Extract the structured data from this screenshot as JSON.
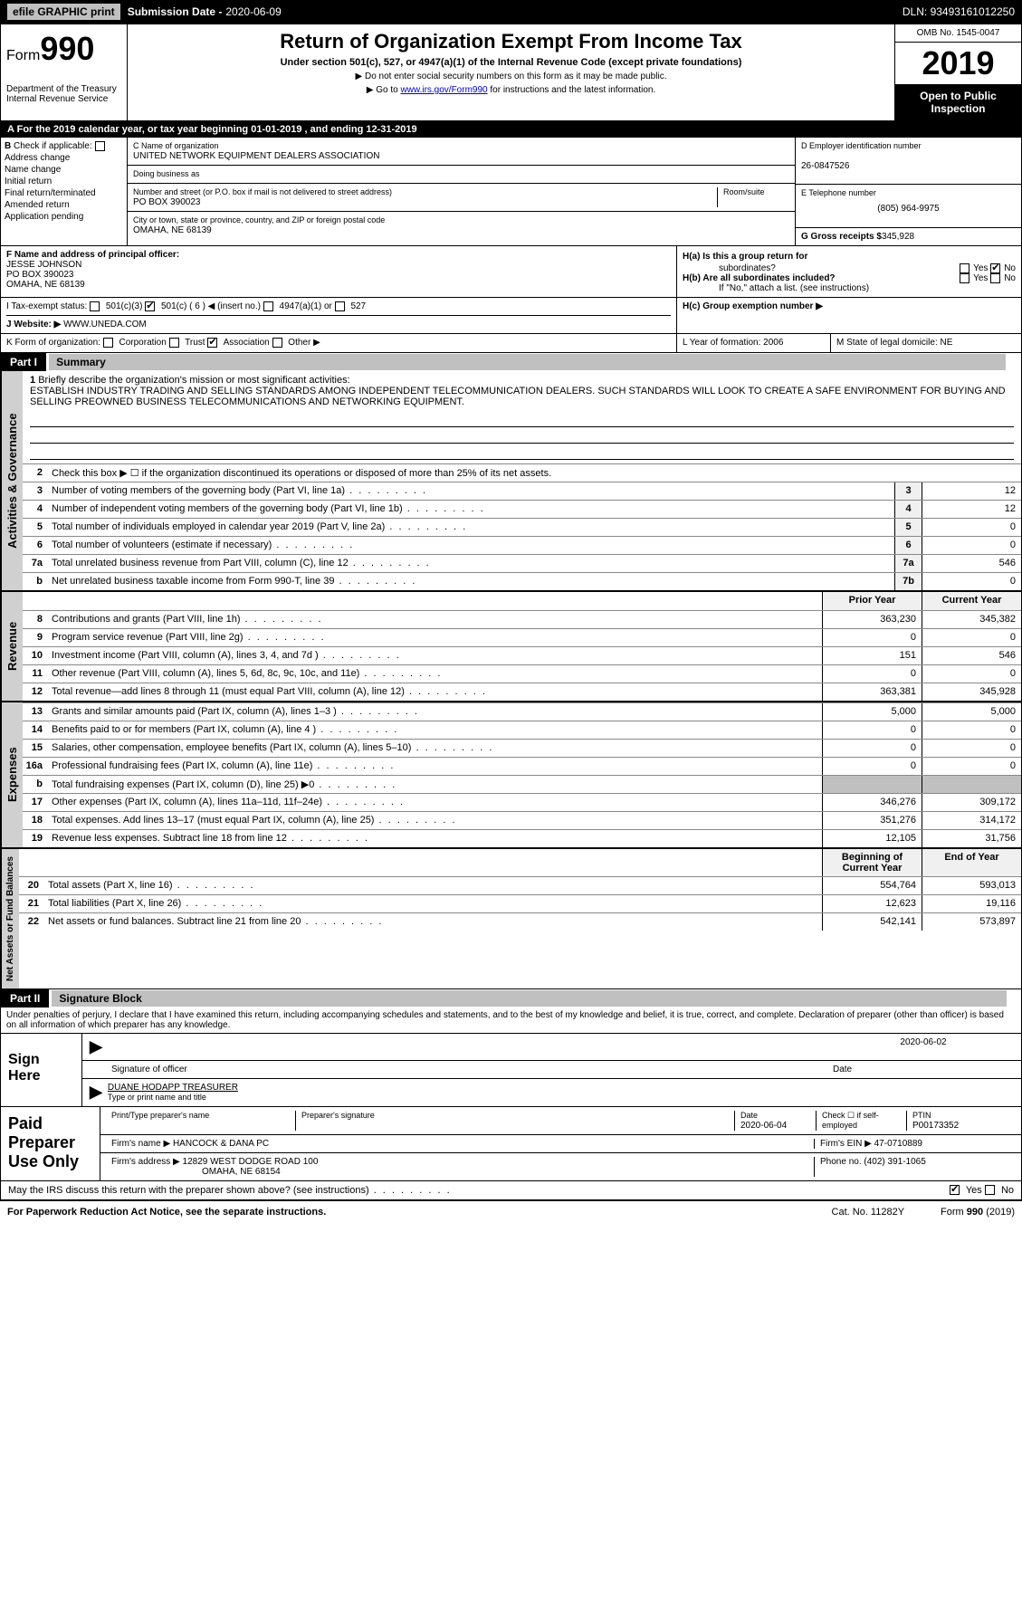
{
  "topbar": {
    "efile": "efile GRAPHIC print",
    "sub_label": "Submission Date -",
    "sub_date": "2020-06-09",
    "dln": "DLN: 93493161012250"
  },
  "header": {
    "form_prefix": "Form",
    "form_num": "990",
    "dept": "Department of the Treasury\nInternal Revenue Service",
    "title": "Return of Organization Exempt From Income Tax",
    "subtitle": "Under section 501(c), 527, or 4947(a)(1) of the Internal Revenue Code (except private foundations)",
    "note1": "▶ Do not enter social security numbers on this form as it may be made public.",
    "note2_pre": "▶ Go to ",
    "note2_link": "www.irs.gov/Form990",
    "note2_post": " for instructions and the latest information.",
    "omb": "OMB No. 1545-0047",
    "year": "2019",
    "open": "Open to Public Inspection"
  },
  "period": "For the 2019 calendar year, or tax year beginning 01-01-2019       , and ending 12-31-2019",
  "colB": {
    "label": "Check if applicable:",
    "items": [
      "Address change",
      "Name change",
      "Initial return",
      "Final return/terminated",
      "Amended return",
      "Application pending"
    ]
  },
  "colC": {
    "name_label": "C Name of organization",
    "name": "UNITED NETWORK EQUIPMENT DEALERS ASSOCIATION",
    "dba_label": "Doing business as",
    "addr_label": "Number and street (or P.O. box if mail is not delivered to street address)",
    "addr": "PO BOX 390023",
    "room_label": "Room/suite",
    "city_label": "City or town, state or province, country, and ZIP or foreign postal code",
    "city": "OMAHA, NE  68139"
  },
  "colD": {
    "ein_label": "D Employer identification number",
    "ein": "26-0847526",
    "phone_label": "E Telephone number",
    "phone": "(805) 964-9975",
    "gross_label": "G Gross receipts $",
    "gross": "345,928"
  },
  "rowF": {
    "f_label": "F  Name and address of principal officer:",
    "f_name": "JESSE JOHNSON",
    "f_addr1": "PO BOX 390023",
    "f_addr2": "OMAHA, NE  68139",
    "ha": "H(a)   Is this a group return for",
    "ha2": "subordinates?",
    "hb": "H(b)   Are all subordinates included?",
    "hb2": "If \"No,\" attach a list. (see instructions)",
    "hc": "H(c)   Group exemption number ▶",
    "yes": "Yes",
    "no": "No"
  },
  "rowI": {
    "label": "I     Tax-exempt status:",
    "opts": [
      "501(c)(3)",
      "501(c) ( 6 ) ◀ (insert no.)",
      "4947(a)(1) or",
      "527"
    ]
  },
  "rowJ": {
    "label": "J   Website: ▶",
    "val": "WWW.UNEDA.COM"
  },
  "rowK": {
    "label": "K Form of organization:",
    "opts": [
      "Corporation",
      "Trust",
      "Association",
      "Other ▶"
    ],
    "l_label": "L Year of formation:",
    "l_val": "2006",
    "m_label": "M State of legal domicile:",
    "m_val": "NE"
  },
  "part1": {
    "tab": "Part I",
    "title": "Summary",
    "line1_label": "Briefly describe the organization's mission or most significant activities:",
    "mission": "ESTABLISH INDUSTRY TRADING AND SELLING STANDARDS AMONG INDEPENDENT TELECOMMUNICATION DEALERS. SUCH STANDARDS WILL LOOK TO CREATE A SAFE ENVIRONMENT FOR BUYING AND SELLING PREOWNED BUSINESS TELECOMMUNICATIONS AND NETWORKING EQUIPMENT.",
    "line2": "Check this box ▶ ☐  if the organization discontinued its operations or disposed of more than 25% of its net assets.",
    "sections": {
      "gov": "Activities & Governance",
      "rev": "Revenue",
      "exp": "Expenses",
      "net": "Net Assets or Fund Balances"
    },
    "prior_label": "Prior Year",
    "current_label": "Current Year",
    "begin_label": "Beginning of Current Year",
    "end_label": "End of Year",
    "lines_single": [
      {
        "n": "3",
        "t": "Number of voting members of the governing body (Part VI, line 1a)",
        "b": "3",
        "v": "12"
      },
      {
        "n": "4",
        "t": "Number of independent voting members of the governing body (Part VI, line 1b)",
        "b": "4",
        "v": "12"
      },
      {
        "n": "5",
        "t": "Total number of individuals employed in calendar year 2019 (Part V, line 2a)",
        "b": "5",
        "v": "0"
      },
      {
        "n": "6",
        "t": "Total number of volunteers (estimate if necessary)",
        "b": "6",
        "v": "0"
      },
      {
        "n": "7a",
        "t": "Total unrelated business revenue from Part VIII, column (C), line 12",
        "b": "7a",
        "v": "546"
      },
      {
        "n": "b",
        "t": "Net unrelated business taxable income from Form 990-T, line 39",
        "b": "7b",
        "v": "0"
      }
    ],
    "lines_rev": [
      {
        "n": "8",
        "t": "Contributions and grants (Part VIII, line 1h)",
        "p": "363,230",
        "c": "345,382"
      },
      {
        "n": "9",
        "t": "Program service revenue (Part VIII, line 2g)",
        "p": "0",
        "c": "0"
      },
      {
        "n": "10",
        "t": "Investment income (Part VIII, column (A), lines 3, 4, and 7d )",
        "p": "151",
        "c": "546"
      },
      {
        "n": "11",
        "t": "Other revenue (Part VIII, column (A), lines 5, 6d, 8c, 9c, 10c, and 11e)",
        "p": "0",
        "c": "0"
      },
      {
        "n": "12",
        "t": "Total revenue—add lines 8 through 11 (must equal Part VIII, column (A), line 12)",
        "p": "363,381",
        "c": "345,928"
      }
    ],
    "lines_exp": [
      {
        "n": "13",
        "t": "Grants and similar amounts paid (Part IX, column (A), lines 1–3 )",
        "p": "5,000",
        "c": "5,000"
      },
      {
        "n": "14",
        "t": "Benefits paid to or for members (Part IX, column (A), line 4 )",
        "p": "0",
        "c": "0"
      },
      {
        "n": "15",
        "t": "Salaries, other compensation, employee benefits (Part IX, column (A), lines 5–10)",
        "p": "0",
        "c": "0"
      },
      {
        "n": "16a",
        "t": "Professional fundraising fees (Part IX, column (A), line 11e)",
        "p": "0",
        "c": "0"
      },
      {
        "n": "b",
        "t": "Total fundraising expenses (Part IX, column (D), line 25) ▶0",
        "p": "",
        "c": "",
        "shaded": true
      },
      {
        "n": "17",
        "t": "Other expenses (Part IX, column (A), lines 11a–11d, 11f–24e)",
        "p": "346,276",
        "c": "309,172"
      },
      {
        "n": "18",
        "t": "Total expenses. Add lines 13–17 (must equal Part IX, column (A), line 25)",
        "p": "351,276",
        "c": "314,172"
      },
      {
        "n": "19",
        "t": "Revenue less expenses. Subtract line 18 from line 12",
        "p": "12,105",
        "c": "31,756"
      }
    ],
    "lines_net": [
      {
        "n": "20",
        "t": "Total assets (Part X, line 16)",
        "p": "554,764",
        "c": "593,013"
      },
      {
        "n": "21",
        "t": "Total liabilities (Part X, line 26)",
        "p": "12,623",
        "c": "19,116"
      },
      {
        "n": "22",
        "t": "Net assets or fund balances. Subtract line 21 from line 20",
        "p": "542,141",
        "c": "573,897"
      }
    ]
  },
  "part2": {
    "tab": "Part II",
    "title": "Signature Block",
    "decl": "Under penalties of perjury, I declare that I have examined this return, including accompanying schedules and statements, and to the best of my knowledge and belief, it is true, correct, and complete. Declaration of preparer (other than officer) is based on all information of which preparer has any knowledge.",
    "sign_here": "Sign Here",
    "sig_officer": "Signature of officer",
    "sig_date": "2020-06-02",
    "date_label": "Date",
    "officer_name": "DUANE HODAPP  TREASURER",
    "type_label": "Type or print name and title"
  },
  "paid": {
    "label": "Paid Preparer Use Only",
    "h1": "Print/Type preparer's name",
    "h2": "Preparer's signature",
    "h3": "Date",
    "h3v": "2020-06-04",
    "h4": "Check ☐ if self-employed",
    "h5": "PTIN",
    "h5v": "P00173352",
    "firm_label": "Firm's name    ▶",
    "firm": "HANCOCK & DANA PC",
    "ein_label": "Firm's EIN ▶",
    "ein": "47-0710889",
    "addr_label": "Firm's address ▶",
    "addr1": "12829 WEST DODGE ROAD 100",
    "addr2": "OMAHA, NE  68154",
    "phone_label": "Phone no.",
    "phone": "(402) 391-1065"
  },
  "bottom": {
    "q": "May the IRS discuss this return with the preparer shown above? (see instructions)",
    "yes": "Yes",
    "no": "No"
  },
  "footer": {
    "pra": "For Paperwork Reduction Act Notice, see the separate instructions.",
    "cat": "Cat. No. 11282Y",
    "form": "Form 990 (2019)"
  }
}
